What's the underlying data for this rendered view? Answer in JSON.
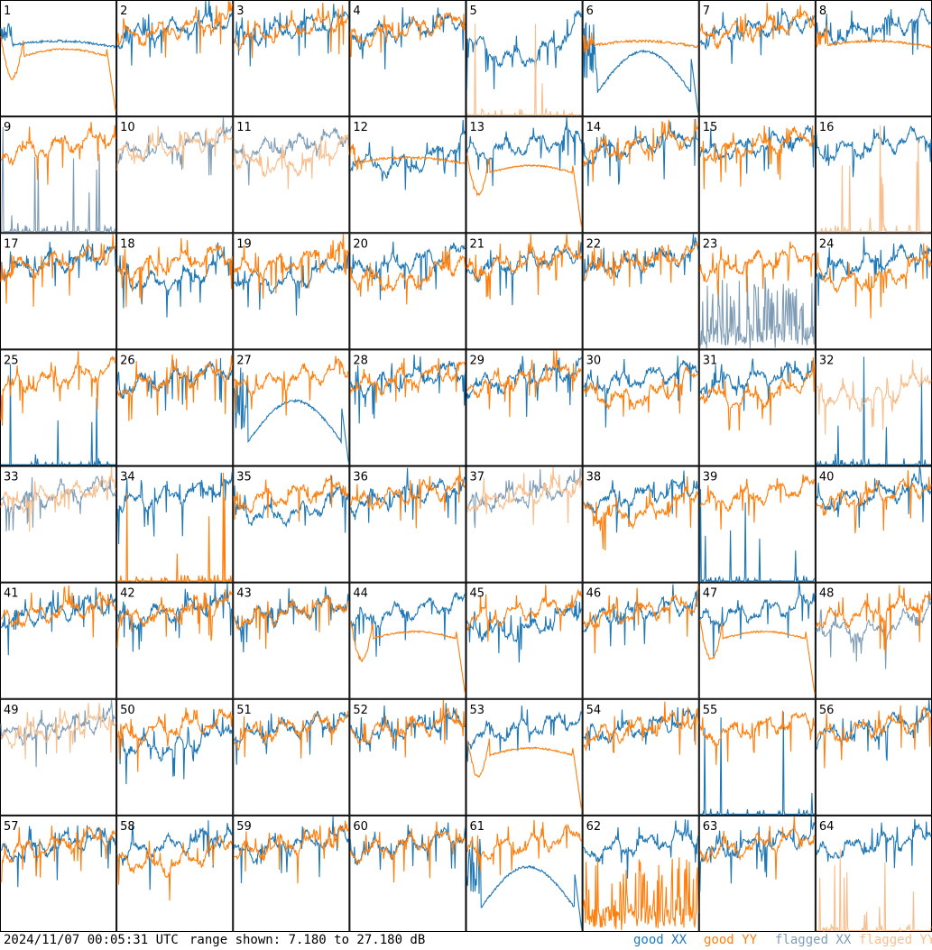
{
  "footer": {
    "timestamp": "2024/11/07 00:05:31 UTC",
    "range": "range shown: 7.180 to 27.180 dB"
  },
  "legend": [
    {
      "id": "good-xx",
      "text": "good XX",
      "color": "#1f77b4"
    },
    {
      "id": "good-yy",
      "text": "good YY",
      "color": "#ff7f0e"
    },
    {
      "id": "flagged-xx",
      "text": "flagged XX",
      "color": "#7f9cb5"
    },
    {
      "id": "flagged-yy",
      "text": "flagged YY",
      "color": "#f8bf8e"
    }
  ],
  "chart_data": {
    "type": "line",
    "grid": {
      "rows": 8,
      "cols": 8
    },
    "ylim": [
      7.18,
      27.18
    ],
    "yunit": "dB",
    "panels": [
      {
        "label": "1",
        "xx": "good",
        "yy": "good",
        "xxShape": "flat",
        "yyShape": "dipdrop"
      },
      {
        "label": "2",
        "xx": "good",
        "yy": "good",
        "xxShape": "normal",
        "yyShape": "normal"
      },
      {
        "label": "3",
        "xx": "good",
        "yy": "good",
        "xxShape": "normal",
        "yyShape": "normal"
      },
      {
        "label": "4",
        "xx": "good",
        "yy": "good",
        "xxShape": "normal",
        "yyShape": "normal"
      },
      {
        "label": "5",
        "xx": "good",
        "yy": "flagged",
        "xxShape": "deep",
        "yyShape": "spikes"
      },
      {
        "label": "6",
        "xx": "good",
        "yy": "good",
        "xxShape": "bowl",
        "yyShape": "flat"
      },
      {
        "label": "7",
        "xx": "good",
        "yy": "good",
        "xxShape": "normal",
        "yyShape": "normal"
      },
      {
        "label": "8",
        "xx": "good",
        "yy": "good",
        "xxShape": "normal",
        "yyShape": "flat"
      },
      {
        "label": "9",
        "xx": "flagged",
        "yy": "good",
        "xxShape": "spikes",
        "yyShape": "normal"
      },
      {
        "label": "10",
        "xx": "flagged",
        "yy": "flagged",
        "xxShape": "normal",
        "yyShape": "normal"
      },
      {
        "label": "11",
        "xx": "flagged",
        "yy": "flagged",
        "xxShape": "normal",
        "yyShape": "low"
      },
      {
        "label": "12",
        "xx": "good",
        "yy": "good",
        "xxShape": "low",
        "yyShape": "flat"
      },
      {
        "label": "13",
        "xx": "good",
        "yy": "good",
        "xxShape": "normal",
        "yyShape": "dipdrop"
      },
      {
        "label": "14",
        "xx": "good",
        "yy": "good",
        "xxShape": "normal",
        "yyShape": "normal"
      },
      {
        "label": "15",
        "xx": "good",
        "yy": "good",
        "xxShape": "normal",
        "yyShape": "normal"
      },
      {
        "label": "16",
        "xx": "good",
        "yy": "flagged",
        "xxShape": "normal",
        "yyShape": "spikes"
      },
      {
        "label": "17",
        "xx": "good",
        "yy": "good",
        "xxShape": "normal",
        "yyShape": "normal"
      },
      {
        "label": "18",
        "xx": "good",
        "yy": "good",
        "xxShape": "low",
        "yyShape": "normal"
      },
      {
        "label": "19",
        "xx": "good",
        "yy": "good",
        "xxShape": "low",
        "yyShape": "normal"
      },
      {
        "label": "20",
        "xx": "good",
        "yy": "good",
        "xxShape": "normal",
        "yyShape": "low"
      },
      {
        "label": "21",
        "xx": "good",
        "yy": "good",
        "xxShape": "normal",
        "yyShape": "normal"
      },
      {
        "label": "22",
        "xx": "good",
        "yy": "good",
        "xxShape": "normal",
        "yyShape": "normal"
      },
      {
        "label": "23",
        "xx": "flagged",
        "yy": "good",
        "xxShape": "noisy",
        "yyShape": "normal"
      },
      {
        "label": "24",
        "xx": "good",
        "yy": "good",
        "xxShape": "normal",
        "yyShape": "low"
      },
      {
        "label": "25",
        "xx": "good",
        "yy": "good",
        "xxShape": "spikes",
        "yyShape": "normal"
      },
      {
        "label": "26",
        "xx": "good",
        "yy": "good",
        "xxShape": "normal",
        "yyShape": "normal"
      },
      {
        "label": "27",
        "xx": "good",
        "yy": "good",
        "xxShape": "bowl",
        "yyShape": "normal"
      },
      {
        "label": "28",
        "xx": "good",
        "yy": "good",
        "xxShape": "normal",
        "yyShape": "normal"
      },
      {
        "label": "29",
        "xx": "good",
        "yy": "good",
        "xxShape": "normal",
        "yyShape": "normal"
      },
      {
        "label": "30",
        "xx": "good",
        "yy": "good",
        "xxShape": "normal",
        "yyShape": "low"
      },
      {
        "label": "31",
        "xx": "good",
        "yy": "good",
        "xxShape": "normal",
        "yyShape": "low"
      },
      {
        "label": "32",
        "xx": "good",
        "yy": "flagged",
        "xxShape": "spikes",
        "yyShape": "low"
      },
      {
        "label": "33",
        "xx": "flagged",
        "yy": "flagged",
        "xxShape": "normal",
        "yyShape": "normal"
      },
      {
        "label": "34",
        "xx": "good",
        "yy": "good",
        "xxShape": "normal",
        "yyShape": "spikes"
      },
      {
        "label": "35",
        "xx": "good",
        "yy": "good",
        "xxShape": "low",
        "yyShape": "normal"
      },
      {
        "label": "36",
        "xx": "good",
        "yy": "good",
        "xxShape": "normal",
        "yyShape": "normal"
      },
      {
        "label": "37",
        "xx": "flagged",
        "yy": "flagged",
        "xxShape": "normal",
        "yyShape": "normal"
      },
      {
        "label": "38",
        "xx": "good",
        "yy": "good",
        "xxShape": "normal",
        "yyShape": "low"
      },
      {
        "label": "39",
        "xx": "good",
        "yy": "good",
        "xxShape": "spikes",
        "yyShape": "normal"
      },
      {
        "label": "40",
        "xx": "good",
        "yy": "good",
        "xxShape": "normal",
        "yyShape": "normal"
      },
      {
        "label": "41",
        "xx": "good",
        "yy": "good",
        "xxShape": "normal",
        "yyShape": "normal"
      },
      {
        "label": "42",
        "xx": "good",
        "yy": "good",
        "xxShape": "normal",
        "yyShape": "normal"
      },
      {
        "label": "43",
        "xx": "good",
        "yy": "good",
        "xxShape": "normal",
        "yyShape": "normal"
      },
      {
        "label": "44",
        "xx": "good",
        "yy": "good",
        "xxShape": "normal",
        "yyShape": "dipdrop"
      },
      {
        "label": "45",
        "xx": "good",
        "yy": "good",
        "xxShape": "low",
        "yyShape": "normal"
      },
      {
        "label": "46",
        "xx": "good",
        "yy": "good",
        "xxShape": "normal",
        "yyShape": "normal"
      },
      {
        "label": "47",
        "xx": "good",
        "yy": "good",
        "xxShape": "normal",
        "yyShape": "dipdrop"
      },
      {
        "label": "48",
        "xx": "flagged",
        "yy": "good",
        "xxShape": "low",
        "yyShape": "normal"
      },
      {
        "label": "49",
        "xx": "flagged",
        "yy": "flagged",
        "xxShape": "normal",
        "yyShape": "normal"
      },
      {
        "label": "50",
        "xx": "good",
        "yy": "good",
        "xxShape": "low",
        "yyShape": "normal"
      },
      {
        "label": "51",
        "xx": "good",
        "yy": "good",
        "xxShape": "normal",
        "yyShape": "normal"
      },
      {
        "label": "52",
        "xx": "good",
        "yy": "good",
        "xxShape": "normal",
        "yyShape": "normal"
      },
      {
        "label": "53",
        "xx": "good",
        "yy": "good",
        "xxShape": "normal",
        "yyShape": "dipdrop"
      },
      {
        "label": "54",
        "xx": "good",
        "yy": "good",
        "xxShape": "normal",
        "yyShape": "normal"
      },
      {
        "label": "55",
        "xx": "good",
        "yy": "good",
        "xxShape": "spikes",
        "yyShape": "normal"
      },
      {
        "label": "56",
        "xx": "good",
        "yy": "good",
        "xxShape": "normal",
        "yyShape": "normal"
      },
      {
        "label": "57",
        "xx": "good",
        "yy": "good",
        "xxShape": "normal",
        "yyShape": "normal"
      },
      {
        "label": "58",
        "xx": "good",
        "yy": "good",
        "xxShape": "normal",
        "yyShape": "low"
      },
      {
        "label": "59",
        "xx": "good",
        "yy": "good",
        "xxShape": "normal",
        "yyShape": "normal"
      },
      {
        "label": "60",
        "xx": "good",
        "yy": "good",
        "xxShape": "normal",
        "yyShape": "normal"
      },
      {
        "label": "61",
        "xx": "good",
        "yy": "good",
        "xxShape": "bowl",
        "yyShape": "normal"
      },
      {
        "label": "62",
        "xx": "good",
        "yy": "good",
        "xxShape": "normal",
        "yyShape": "noisy"
      },
      {
        "label": "63",
        "xx": "good",
        "yy": "good",
        "xxShape": "normal",
        "yyShape": "normal"
      },
      {
        "label": "64",
        "xx": "good",
        "yy": "flagged",
        "xxShape": "normal",
        "yyShape": "spikes"
      }
    ]
  }
}
